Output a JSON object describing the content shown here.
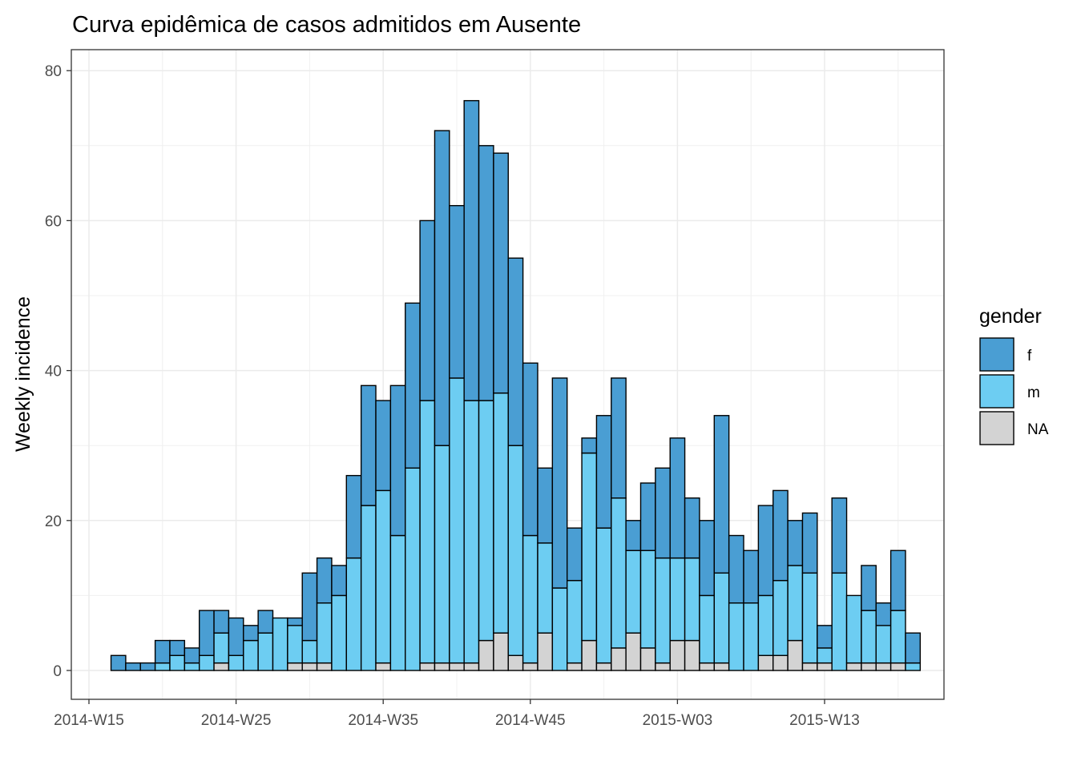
{
  "chart_data": {
    "type": "bar",
    "stacked": true,
    "title": "Curva epidêmica de casos admitidos em Ausente",
    "xlabel": "",
    "ylabel": "Weekly incidence",
    "ylim": [
      0,
      80
    ],
    "yticks": [
      0,
      20,
      40,
      60,
      80
    ],
    "x_tick_labels": [
      "2014-W15",
      "2014-W25",
      "2014-W35",
      "2014-W45",
      "2015-W03",
      "2015-W13"
    ],
    "x_tick_positions": [
      0,
      10,
      20,
      30,
      40,
      50
    ],
    "first_bar_offset": 1.5,
    "grid": true,
    "legend_position": "right",
    "legend_title": "gender",
    "legend_entries": [
      "f",
      "m",
      "NA"
    ],
    "colors": {
      "f": "#4a9ed3",
      "m": "#6dcdf2",
      "NA": "#d3d3d3",
      "outline": "#000000"
    },
    "series": [
      {
        "name": "NA",
        "values": [
          0,
          0,
          0,
          0,
          0,
          0,
          0,
          1,
          0,
          0,
          0,
          0,
          1,
          1,
          1,
          0,
          0,
          0,
          1,
          0,
          0,
          1,
          1,
          1,
          1,
          4,
          5,
          2,
          1,
          5,
          0,
          1,
          4,
          1,
          3,
          5,
          3,
          1,
          4,
          4,
          1,
          1,
          0,
          0,
          2,
          2,
          4,
          1,
          1,
          0,
          1,
          1,
          1,
          1,
          0
        ]
      },
      {
        "name": "m",
        "values": [
          0,
          0,
          0,
          1,
          2,
          1,
          2,
          4,
          2,
          4,
          5,
          7,
          5,
          3,
          8,
          10,
          15,
          22,
          23,
          18,
          27,
          35,
          29,
          38,
          35,
          32,
          32,
          28,
          17,
          12,
          11,
          11,
          25,
          18,
          20,
          11,
          13,
          14,
          11,
          11,
          9,
          12,
          9,
          9,
          8,
          10,
          10,
          12,
          2,
          13,
          9,
          7,
          5,
          7,
          1
        ]
      },
      {
        "name": "f",
        "values": [
          2,
          1,
          1,
          3,
          2,
          2,
          6,
          3,
          5,
          2,
          3,
          0,
          1,
          9,
          6,
          4,
          11,
          16,
          12,
          20,
          22,
          24,
          42,
          23,
          40,
          34,
          32,
          25,
          23,
          10,
          28,
          7,
          2,
          15,
          16,
          4,
          9,
          12,
          16,
          8,
          10,
          21,
          9,
          7,
          12,
          12,
          6,
          8,
          3,
          10,
          0,
          6,
          3,
          8,
          4
        ]
      }
    ]
  }
}
